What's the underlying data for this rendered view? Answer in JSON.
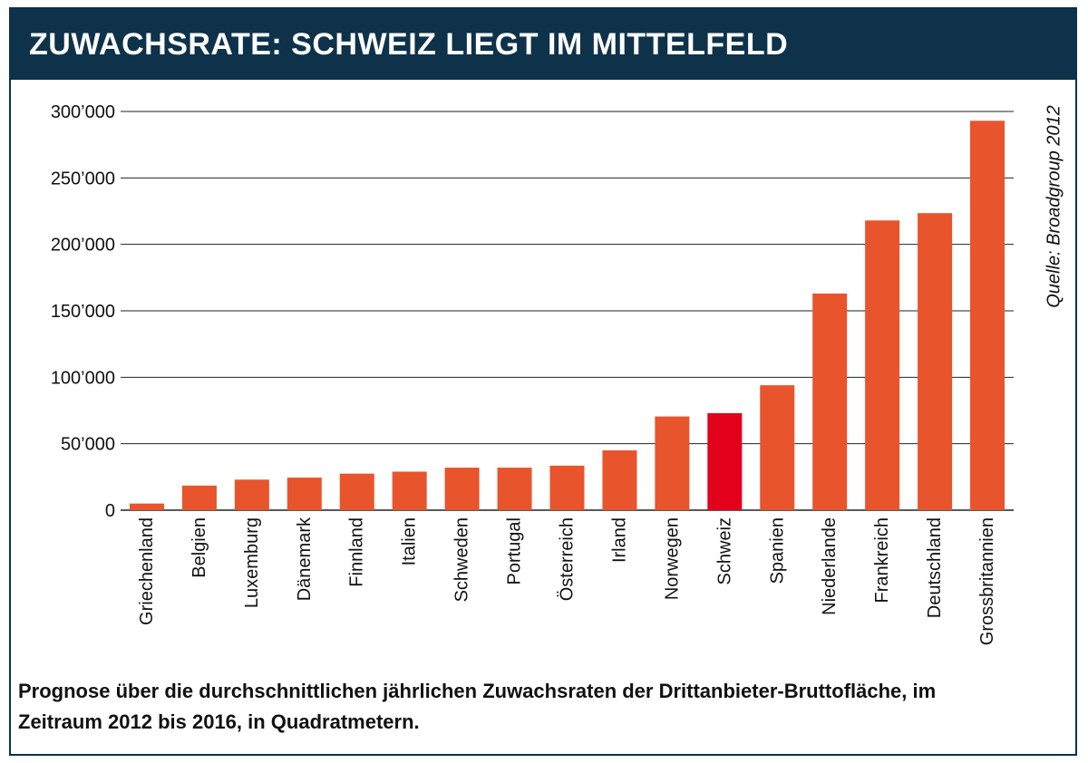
{
  "header": {
    "title": "ZUWACHSRATE: SCHWEIZ LIEGT IM MITTELFELD"
  },
  "source": "Quelle: Broadgroup 2012",
  "caption": "Prognose über die durchschnittlichen jährlichen Zuwachsraten der Drittanbieter-Bruttofläche, im Zeitraum 2012 bis 2016, in Quadratmetern.",
  "colors": {
    "header_bg": "#0d3249",
    "bar": "#e8542c",
    "highlight_bar": "#e2001a",
    "grid": "#222222"
  },
  "chart_data": {
    "type": "bar",
    "categories": [
      "Griechenland",
      "Belgien",
      "Luxemburg",
      "Dänemark",
      "Finnland",
      "Italien",
      "Schweden",
      "Portugal",
      "Österreich",
      "Irland",
      "Norwegen",
      "Schweiz",
      "Spanien",
      "Niederlande",
      "Frankreich",
      "Deutschland",
      "Grossbritannien"
    ],
    "values": [
      5000,
      18500,
      23000,
      24500,
      27500,
      29000,
      32000,
      32000,
      33500,
      45000,
      70500,
      73000,
      94000,
      163000,
      218000,
      223500,
      293000
    ],
    "highlight": "Schweiz",
    "ylim": [
      0,
      300000
    ],
    "yticks": [
      0,
      50000,
      100000,
      150000,
      200000,
      250000,
      300000
    ],
    "ytick_labels": [
      "0",
      "50’000",
      "100’000",
      "150’000",
      "200’000",
      "250’000",
      "300’000"
    ],
    "grid": true
  }
}
